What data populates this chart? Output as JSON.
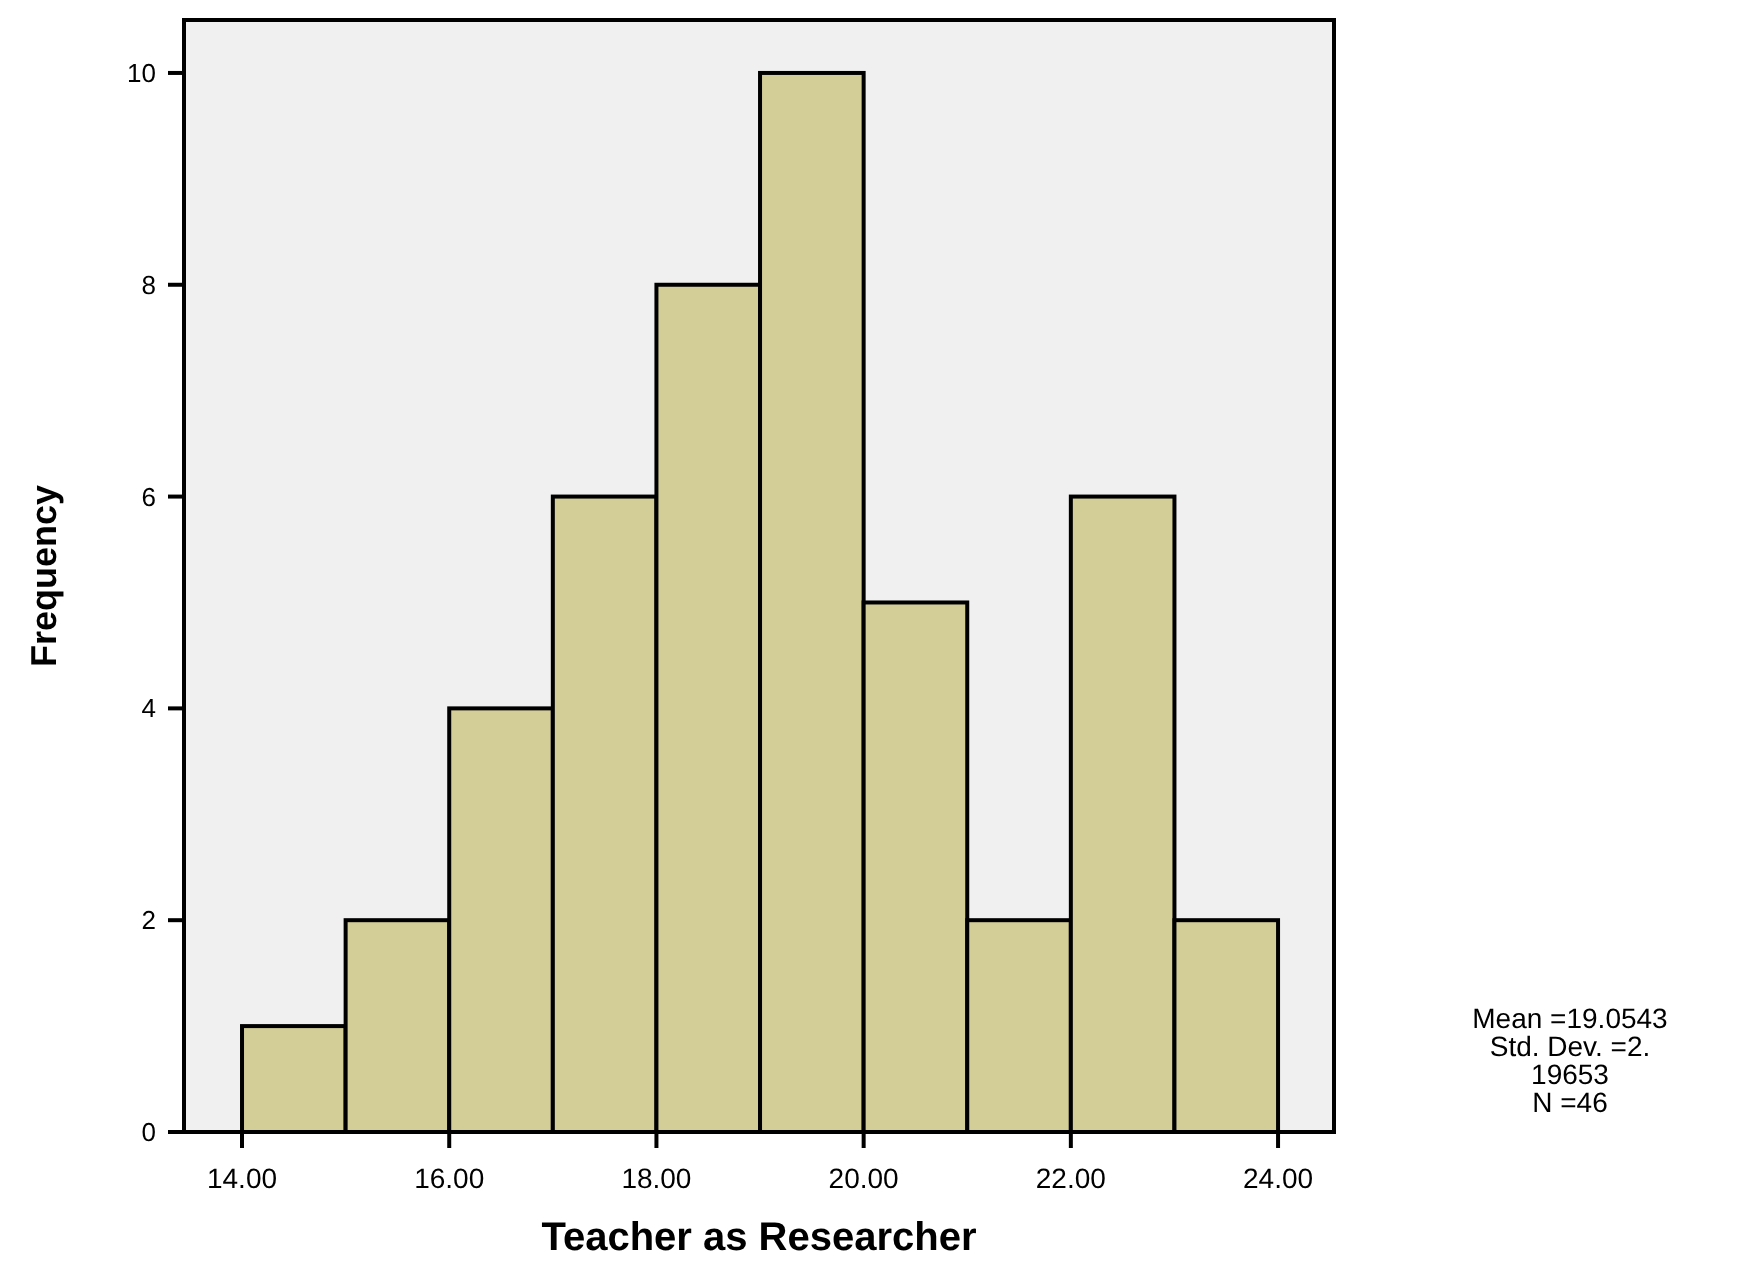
{
  "chart_data": {
    "type": "histogram",
    "xlabel": "Teacher as Researcher",
    "ylabel": "Frequency",
    "bins": [
      14,
      15,
      16,
      17,
      18,
      19,
      20,
      21,
      22,
      23,
      24
    ],
    "values": [
      1,
      2,
      4,
      6,
      8,
      10,
      5,
      2,
      6,
      2
    ],
    "color": "#d3ce98",
    "xlim": [
      13.44,
      24.54
    ],
    "xticks": [
      {
        "value": 14,
        "label": "14.00"
      },
      {
        "value": 16,
        "label": "16.00"
      },
      {
        "value": 18,
        "label": "18.00"
      },
      {
        "value": 20,
        "label": "20.00"
      },
      {
        "value": 22,
        "label": "22.00"
      },
      {
        "value": 24,
        "label": "24.00"
      }
    ],
    "ylim": [
      0,
      10.5
    ],
    "yticks": [
      0,
      2,
      4,
      6,
      8,
      10
    ],
    "annotations": [
      "Mean =19.0543",
      "Std. Dev. =2.",
      "19653",
      "N =46"
    ]
  }
}
